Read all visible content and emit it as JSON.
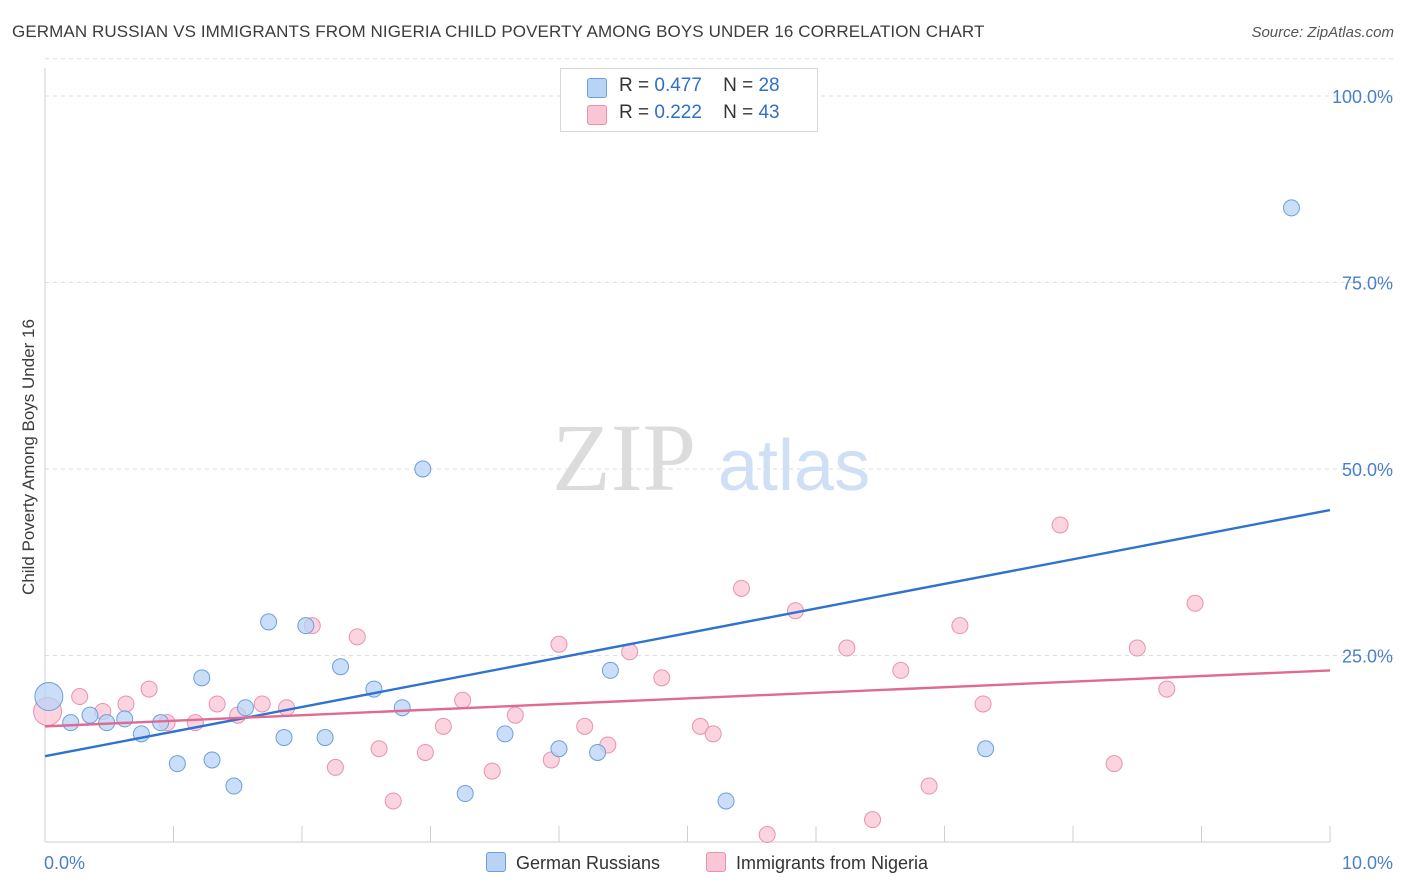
{
  "title": "GERMAN RUSSIAN VS IMMIGRANTS FROM NIGERIA CHILD POVERTY AMONG BOYS UNDER 16 CORRELATION CHART",
  "source": "Source: ZipAtlas.com",
  "watermark": {
    "zip": "ZIP",
    "atlas": "atlas"
  },
  "legend": {
    "rows": [
      {
        "r_label": "R =",
        "r_value": "0.477",
        "n_label": "N =",
        "n_value": "28"
      },
      {
        "r_label": "R =",
        "r_value": "0.222",
        "n_label": "N =",
        "n_value": "43"
      }
    ]
  },
  "bottom_legend": {
    "series1": "German Russians",
    "series2": "Immigrants from Nigeria"
  },
  "colors": {
    "blue_fill": "#b9d3f5",
    "blue_stroke": "#6a9fe0",
    "blue_line": "#2f72d0",
    "pink_fill": "#f9c6d6",
    "pink_stroke": "#e892ae",
    "pink_line": "#e06a93",
    "tick_label": "#4a7fc9"
  },
  "chart_data": {
    "type": "scatter",
    "title": "GERMAN RUSSIAN VS IMMIGRANTS FROM NIGERIA CHILD POVERTY AMONG BOYS UNDER 16 CORRELATION CHART",
    "xlabel": "",
    "ylabel": "Child Poverty Among Boys Under 16",
    "xlim": [
      0,
      10
    ],
    "ylim": [
      0,
      100
    ],
    "x_tick_labels": [
      "0.0%",
      "10.0%"
    ],
    "y_ticks": [
      25,
      50,
      75,
      100
    ],
    "y_tick_labels": [
      "25.0%",
      "50.0%",
      "75.0%",
      "100.0%"
    ],
    "grid": "horizontal-dashed",
    "series": [
      {
        "name": "German Russians",
        "R": 0.477,
        "N": 28,
        "trend": {
          "x": [
            0,
            10
          ],
          "y": [
            11.5,
            44.5
          ]
        },
        "points": [
          {
            "x": 0.03,
            "y": 19.5,
            "big": true
          },
          {
            "x": 0.2,
            "y": 16
          },
          {
            "x": 0.35,
            "y": 17
          },
          {
            "x": 0.48,
            "y": 16
          },
          {
            "x": 0.62,
            "y": 16.5
          },
          {
            "x": 0.75,
            "y": 14.5
          },
          {
            "x": 0.9,
            "y": 16
          },
          {
            "x": 1.03,
            "y": 10.5
          },
          {
            "x": 1.22,
            "y": 22
          },
          {
            "x": 1.3,
            "y": 11
          },
          {
            "x": 1.47,
            "y": 7.5
          },
          {
            "x": 1.56,
            "y": 18
          },
          {
            "x": 1.74,
            "y": 29.5
          },
          {
            "x": 1.86,
            "y": 14
          },
          {
            "x": 2.03,
            "y": 29
          },
          {
            "x": 2.18,
            "y": 14
          },
          {
            "x": 2.3,
            "y": 23.5
          },
          {
            "x": 2.56,
            "y": 20.5
          },
          {
            "x": 2.78,
            "y": 18
          },
          {
            "x": 2.94,
            "y": 50
          },
          {
            "x": 3.27,
            "y": 6.5
          },
          {
            "x": 3.58,
            "y": 14.5
          },
          {
            "x": 4.0,
            "y": 12.5
          },
          {
            "x": 4.3,
            "y": 12
          },
          {
            "x": 4.4,
            "y": 23
          },
          {
            "x": 5.3,
            "y": 5.5
          },
          {
            "x": 7.32,
            "y": 12.5
          },
          {
            "x": 9.7,
            "y": 85
          }
        ]
      },
      {
        "name": "Immigrants from Nigeria",
        "R": 0.222,
        "N": 43,
        "trend": {
          "x": [
            0,
            10
          ],
          "y": [
            15.5,
            23
          ]
        },
        "points": [
          {
            "x": 0.02,
            "y": 17.5,
            "big": true
          },
          {
            "x": 0.27,
            "y": 19.5
          },
          {
            "x": 0.45,
            "y": 17.5
          },
          {
            "x": 0.63,
            "y": 18.5
          },
          {
            "x": 0.81,
            "y": 20.5
          },
          {
            "x": 0.95,
            "y": 16
          },
          {
            "x": 1.17,
            "y": 16
          },
          {
            "x": 1.34,
            "y": 18.5
          },
          {
            "x": 1.5,
            "y": 17
          },
          {
            "x": 1.69,
            "y": 18.5
          },
          {
            "x": 1.88,
            "y": 18
          },
          {
            "x": 2.08,
            "y": 29
          },
          {
            "x": 2.26,
            "y": 10
          },
          {
            "x": 2.43,
            "y": 27.5
          },
          {
            "x": 2.6,
            "y": 12.5
          },
          {
            "x": 2.71,
            "y": 5.5
          },
          {
            "x": 2.96,
            "y": 12
          },
          {
            "x": 3.1,
            "y": 15.5
          },
          {
            "x": 3.25,
            "y": 19
          },
          {
            "x": 3.48,
            "y": 9.5
          },
          {
            "x": 3.66,
            "y": 17
          },
          {
            "x": 3.94,
            "y": 11
          },
          {
            "x": 4.0,
            "y": 26.5
          },
          {
            "x": 4.2,
            "y": 15.5
          },
          {
            "x": 4.38,
            "y": 13
          },
          {
            "x": 4.55,
            "y": 25.5
          },
          {
            "x": 4.8,
            "y": 22
          },
          {
            "x": 5.1,
            "y": 15.5
          },
          {
            "x": 5.2,
            "y": 14.5
          },
          {
            "x": 5.42,
            "y": 34
          },
          {
            "x": 5.62,
            "y": 1
          },
          {
            "x": 5.84,
            "y": 31
          },
          {
            "x": 6.24,
            "y": 26
          },
          {
            "x": 6.44,
            "y": 3
          },
          {
            "x": 6.66,
            "y": 23
          },
          {
            "x": 6.88,
            "y": 7.5
          },
          {
            "x": 7.12,
            "y": 29
          },
          {
            "x": 7.3,
            "y": 18.5
          },
          {
            "x": 7.9,
            "y": 42.5
          },
          {
            "x": 8.32,
            "y": 10.5
          },
          {
            "x": 8.5,
            "y": 26
          },
          {
            "x": 8.73,
            "y": 20.5
          },
          {
            "x": 8.95,
            "y": 32
          }
        ]
      }
    ]
  }
}
